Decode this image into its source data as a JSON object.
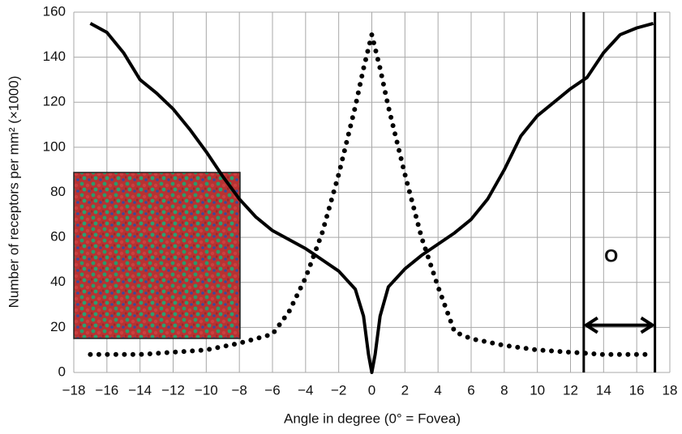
{
  "chart_data": {
    "type": "line",
    "x_label": "Angle in degree (0° = Fovea)",
    "y_label": "Number of receptors per mm² (×1000)",
    "xlim": [
      -18,
      18
    ],
    "xticks": [
      {
        "value": -18,
        "label": "−18"
      },
      {
        "value": -16,
        "label": "−16"
      },
      {
        "value": -14,
        "label": "−14"
      },
      {
        "value": -12,
        "label": "−12"
      },
      {
        "value": -10,
        "label": "−10"
      },
      {
        "value": -8,
        "label": "−8"
      },
      {
        "value": -6,
        "label": "−6"
      },
      {
        "value": -4,
        "label": "−4"
      },
      {
        "value": -2,
        "label": "−2"
      },
      0,
      2,
      4,
      6,
      8,
      10,
      12,
      14,
      16,
      18
    ],
    "ylim": [
      0,
      160
    ],
    "yticks": [
      0,
      20,
      40,
      60,
      80,
      100,
      120,
      140,
      160
    ],
    "grid": true,
    "series": [
      {
        "style": "solid",
        "color": "#000000",
        "x": [
          -17,
          -16,
          -15,
          -14,
          -13,
          -12,
          -11,
          -10,
          -9,
          -8,
          -7,
          -6,
          -5,
          -4,
          -3,
          -2,
          -1,
          -0.5,
          -0.2,
          0,
          0.2,
          0.5,
          1,
          2,
          3,
          4,
          5,
          6,
          7,
          8,
          9,
          10,
          11,
          12,
          13,
          14,
          15,
          16,
          17
        ],
        "values": [
          155,
          151,
          142,
          130,
          124,
          117,
          108,
          98,
          87,
          77,
          69,
          63,
          59,
          55,
          50,
          45,
          37,
          25,
          8,
          0,
          8,
          25,
          38,
          46,
          52,
          57,
          62,
          68,
          77,
          90,
          105,
          114,
          120,
          126,
          131,
          142,
          150,
          153,
          155
        ]
      },
      {
        "style": "dotted",
        "color": "#000000",
        "x": [
          -17,
          -14,
          -12,
          -10,
          -8,
          -6,
          -5,
          -4,
          -3,
          -2,
          -1,
          -0.5,
          0,
          0.5,
          1,
          2,
          3,
          4,
          5,
          6,
          8,
          10,
          12,
          14,
          16.5
        ],
        "values": [
          8,
          8,
          9,
          10,
          13,
          17,
          27,
          42,
          62,
          88,
          118,
          135,
          150,
          135,
          118,
          88,
          60,
          38,
          18,
          15,
          12,
          10,
          9,
          8,
          8
        ]
      }
    ],
    "annotation": {
      "text": "O",
      "x_range": [
        12.8,
        17.1
      ],
      "y": 21
    }
  }
}
